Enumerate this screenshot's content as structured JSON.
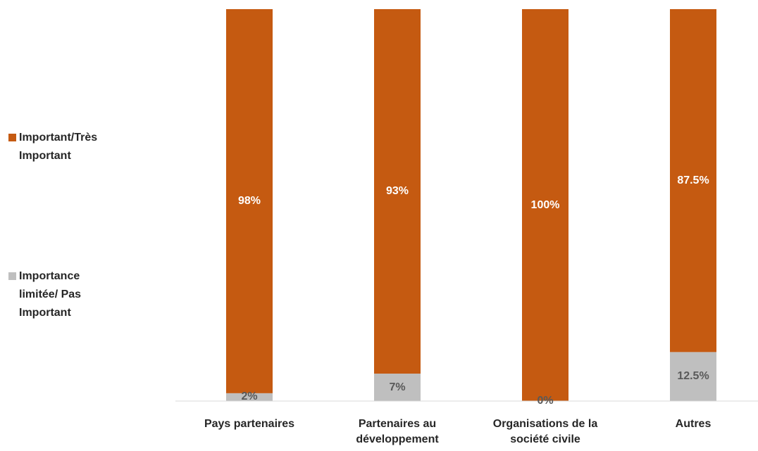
{
  "chart_data": {
    "type": "stacked_bar",
    "categories": [
      "Pays partenaires",
      "Partenaires au développement",
      "Organisations de la société civile",
      "Autres"
    ],
    "series": [
      {
        "name": "Importance limitée/ Pas Important",
        "color": "#bfbfbf",
        "values": [
          2,
          7,
          0,
          12.5
        ],
        "value_labels": [
          "2%",
          "7%",
          "0%",
          "12.5%"
        ]
      },
      {
        "name": "Important/Très Important",
        "color": "#c55a11",
        "values": [
          98,
          93,
          100,
          87.5
        ],
        "value_labels": [
          "98%",
          "93%",
          "100%",
          "87.5%"
        ]
      }
    ],
    "ylim": [
      0,
      100
    ],
    "legend": "left"
  }
}
